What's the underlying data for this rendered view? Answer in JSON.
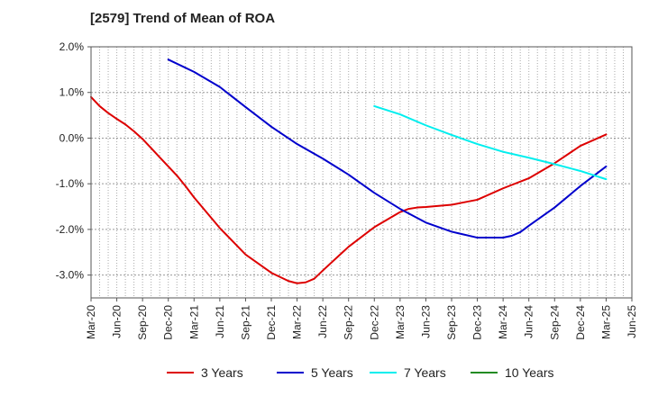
{
  "chart_data": {
    "type": "line",
    "title": "[2579]  Trend of Mean of ROA",
    "xlabel": "",
    "ylabel": "",
    "ylim": [
      -3.5,
      2.0
    ],
    "y_ticks": [
      2.0,
      1.0,
      0.0,
      -1.0,
      -2.0,
      -3.0
    ],
    "y_tick_labels": [
      "2.0%",
      "1.0%",
      "0.0%",
      "-1.0%",
      "-2.0%",
      "-3.0%"
    ],
    "categories": [
      "Mar-20",
      "Jun-20",
      "Sep-20",
      "Dec-20",
      "Mar-21",
      "Jun-21",
      "Sep-21",
      "Dec-21",
      "Mar-22",
      "Jun-22",
      "Sep-22",
      "Dec-22",
      "Mar-23",
      "Jun-23",
      "Sep-23",
      "Dec-23",
      "Mar-24",
      "Jun-24",
      "Sep-24",
      "Dec-24",
      "Mar-25",
      "Jun-25"
    ],
    "grid": true,
    "legend_position": "bottom",
    "series": [
      {
        "name": "3 Years",
        "color": "#dd0000",
        "points": [
          [
            "Mar-20",
            0.9
          ],
          [
            "Apr-20",
            0.7
          ],
          [
            "May-20",
            0.55
          ],
          [
            "Jun-20",
            0.42
          ],
          [
            "Jul-20",
            0.3
          ],
          [
            "Aug-20",
            0.15
          ],
          [
            "Sep-20",
            -0.02
          ],
          [
            "Oct-20",
            -0.22
          ],
          [
            "Nov-20",
            -0.42
          ],
          [
            "Dec-20",
            -0.62
          ],
          [
            "Jan-21",
            -0.82
          ],
          [
            "Feb-21",
            -1.05
          ],
          [
            "Mar-21",
            -1.3
          ],
          [
            "Jun-21",
            -1.97
          ],
          [
            "Sep-21",
            -2.55
          ],
          [
            "Dec-21",
            -2.95
          ],
          [
            "Feb-22",
            -3.13
          ],
          [
            "Mar-22",
            -3.18
          ],
          [
            "Apr-22",
            -3.16
          ],
          [
            "May-22",
            -3.08
          ],
          [
            "Jun-22",
            -2.9
          ],
          [
            "Sep-22",
            -2.38
          ],
          [
            "Dec-22",
            -1.95
          ],
          [
            "Mar-23",
            -1.62
          ],
          [
            "Apr-23",
            -1.55
          ],
          [
            "May-23",
            -1.52
          ],
          [
            "Jun-23",
            -1.51
          ],
          [
            "Sep-23",
            -1.46
          ],
          [
            "Dec-23",
            -1.35
          ],
          [
            "Mar-24",
            -1.1
          ],
          [
            "Jun-24",
            -0.88
          ],
          [
            "Sep-24",
            -0.55
          ],
          [
            "Dec-24",
            -0.17
          ],
          [
            "Mar-25",
            0.08
          ]
        ]
      },
      {
        "name": "5 Years",
        "color": "#0000cc",
        "points": [
          [
            "Dec-20",
            1.72
          ],
          [
            "Mar-21",
            1.45
          ],
          [
            "Jun-21",
            1.12
          ],
          [
            "Sep-21",
            0.68
          ],
          [
            "Dec-21",
            0.25
          ],
          [
            "Mar-22",
            -0.13
          ],
          [
            "Jun-22",
            -0.45
          ],
          [
            "Sep-22",
            -0.8
          ],
          [
            "Dec-22",
            -1.2
          ],
          [
            "Mar-23",
            -1.55
          ],
          [
            "Jun-23",
            -1.85
          ],
          [
            "Sep-23",
            -2.05
          ],
          [
            "Dec-23",
            -2.18
          ],
          [
            "Mar-24",
            -2.18
          ],
          [
            "Apr-24",
            -2.14
          ],
          [
            "May-24",
            -2.06
          ],
          [
            "Jun-24",
            -1.92
          ],
          [
            "Sep-24",
            -1.52
          ],
          [
            "Dec-24",
            -1.05
          ],
          [
            "Mar-25",
            -0.62
          ]
        ]
      },
      {
        "name": "7 Years",
        "color": "#00eeee",
        "points": [
          [
            "Dec-22",
            0.7
          ],
          [
            "Mar-23",
            0.52
          ],
          [
            "Jun-23",
            0.28
          ],
          [
            "Sep-23",
            0.07
          ],
          [
            "Dec-23",
            -0.13
          ],
          [
            "Mar-24",
            -0.3
          ],
          [
            "Jun-24",
            -0.43
          ],
          [
            "Sep-24",
            -0.57
          ],
          [
            "Dec-24",
            -0.72
          ],
          [
            "Mar-25",
            -0.9
          ]
        ]
      },
      {
        "name": "10 Years",
        "color": "#228b22",
        "points": []
      }
    ]
  }
}
